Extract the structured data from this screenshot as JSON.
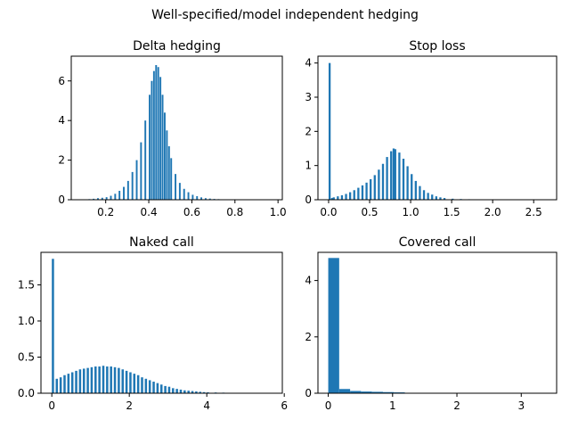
{
  "figure": {
    "title": "Well-specified/model independent hedging",
    "bar_color": "#1f77b4"
  },
  "chart_data": [
    {
      "type": "bar",
      "title": "Delta hedging",
      "xlabel": "",
      "ylabel": "",
      "xlim": [
        0.04,
        1.02
      ],
      "ylim": [
        0,
        7.25
      ],
      "xticks": [
        0.2,
        0.4,
        0.6,
        0.8,
        1.0
      ],
      "xtick_labels": [
        "0.2",
        "0.4",
        "0.6",
        "0.8",
        "1.0"
      ],
      "yticks": [
        0,
        2,
        4,
        6
      ],
      "ytick_labels": [
        "0",
        "2",
        "4",
        "6"
      ],
      "bin_width": 0.008,
      "bins": [
        [
          0.1,
          0.01
        ],
        [
          0.12,
          0.03
        ],
        [
          0.14,
          0.05
        ],
        [
          0.16,
          0.08
        ],
        [
          0.18,
          0.1
        ],
        [
          0.2,
          0.13
        ],
        [
          0.22,
          0.2
        ],
        [
          0.24,
          0.3
        ],
        [
          0.26,
          0.45
        ],
        [
          0.28,
          0.65
        ],
        [
          0.3,
          0.95
        ],
        [
          0.32,
          1.4
        ],
        [
          0.34,
          2.0
        ],
        [
          0.36,
          2.9
        ],
        [
          0.38,
          4.0
        ],
        [
          0.4,
          5.3
        ],
        [
          0.41,
          6.0
        ],
        [
          0.42,
          6.5
        ],
        [
          0.43,
          6.8
        ],
        [
          0.44,
          6.7
        ],
        [
          0.45,
          6.2
        ],
        [
          0.46,
          5.3
        ],
        [
          0.47,
          4.4
        ],
        [
          0.48,
          3.5
        ],
        [
          0.49,
          2.7
        ],
        [
          0.5,
          2.1
        ],
        [
          0.52,
          1.3
        ],
        [
          0.54,
          0.85
        ],
        [
          0.56,
          0.55
        ],
        [
          0.58,
          0.38
        ],
        [
          0.6,
          0.25
        ],
        [
          0.62,
          0.18
        ],
        [
          0.64,
          0.12
        ],
        [
          0.66,
          0.08
        ],
        [
          0.68,
          0.06
        ],
        [
          0.7,
          0.04
        ],
        [
          0.72,
          0.03
        ],
        [
          0.74,
          0.02
        ],
        [
          0.76,
          0.02
        ],
        [
          0.8,
          0.01
        ],
        [
          0.85,
          0.005
        ],
        [
          0.9,
          0.003
        ],
        [
          0.95,
          0.003
        ],
        [
          0.98,
          0.002
        ]
      ]
    },
    {
      "type": "bar",
      "title": "Stop loss",
      "xlabel": "",
      "ylabel": "",
      "xlim": [
        -0.13,
        2.78
      ],
      "ylim": [
        0,
        4.2
      ],
      "xticks": [
        0.0,
        0.5,
        1.0,
        1.5,
        2.0,
        2.5
      ],
      "xtick_labels": [
        "0.0",
        "0.5",
        "1.0",
        "1.5",
        "2.0",
        "2.5"
      ],
      "yticks": [
        0,
        1,
        2,
        3,
        4
      ],
      "ytick_labels": [
        "0",
        "1",
        "2",
        "3",
        "4"
      ],
      "bin_width": 0.025,
      "bins": [
        [
          0.0,
          4.0
        ],
        [
          0.03,
          0.05
        ],
        [
          0.05,
          0.07
        ],
        [
          0.1,
          0.1
        ],
        [
          0.15,
          0.13
        ],
        [
          0.2,
          0.17
        ],
        [
          0.25,
          0.22
        ],
        [
          0.3,
          0.28
        ],
        [
          0.35,
          0.35
        ],
        [
          0.4,
          0.42
        ],
        [
          0.45,
          0.5
        ],
        [
          0.5,
          0.6
        ],
        [
          0.55,
          0.72
        ],
        [
          0.6,
          0.88
        ],
        [
          0.65,
          1.05
        ],
        [
          0.7,
          1.25
        ],
        [
          0.75,
          1.42
        ],
        [
          0.78,
          1.5
        ],
        [
          0.8,
          1.48
        ],
        [
          0.85,
          1.38
        ],
        [
          0.9,
          1.2
        ],
        [
          0.95,
          0.98
        ],
        [
          1.0,
          0.75
        ],
        [
          1.05,
          0.55
        ],
        [
          1.1,
          0.4
        ],
        [
          1.15,
          0.28
        ],
        [
          1.2,
          0.2
        ],
        [
          1.25,
          0.15
        ],
        [
          1.3,
          0.1
        ],
        [
          1.35,
          0.07
        ],
        [
          1.4,
          0.05
        ],
        [
          1.5,
          0.03
        ],
        [
          1.6,
          0.02
        ],
        [
          1.7,
          0.015
        ],
        [
          1.8,
          0.01
        ],
        [
          1.9,
          0.005
        ],
        [
          2.1,
          0.003
        ],
        [
          2.3,
          0.002
        ],
        [
          2.6,
          0.001
        ]
      ]
    },
    {
      "type": "bar",
      "title": "Naked call",
      "xlabel": "",
      "ylabel": "",
      "xlim": [
        -0.28,
        5.95
      ],
      "ylim": [
        0,
        1.95
      ],
      "xticks": [
        0,
        2,
        4,
        6
      ],
      "xtick_labels": [
        "0",
        "2",
        "4",
        "6"
      ],
      "yticks": [
        0.0,
        0.5,
        1.0,
        1.5
      ],
      "ytick_labels": [
        "0.0",
        "0.5",
        "1.0",
        "1.5"
      ],
      "bin_width": 0.058,
      "bins": [
        [
          0.0,
          1.86
        ],
        [
          0.1,
          0.2
        ],
        [
          0.2,
          0.22
        ],
        [
          0.3,
          0.25
        ],
        [
          0.4,
          0.27
        ],
        [
          0.5,
          0.29
        ],
        [
          0.6,
          0.31
        ],
        [
          0.7,
          0.33
        ],
        [
          0.8,
          0.34
        ],
        [
          0.9,
          0.35
        ],
        [
          1.0,
          0.36
        ],
        [
          1.1,
          0.37
        ],
        [
          1.2,
          0.37
        ],
        [
          1.3,
          0.38
        ],
        [
          1.4,
          0.37
        ],
        [
          1.5,
          0.37
        ],
        [
          1.6,
          0.36
        ],
        [
          1.7,
          0.35
        ],
        [
          1.8,
          0.33
        ],
        [
          1.9,
          0.31
        ],
        [
          2.0,
          0.29
        ],
        [
          2.1,
          0.27
        ],
        [
          2.2,
          0.25
        ],
        [
          2.3,
          0.22
        ],
        [
          2.4,
          0.2
        ],
        [
          2.5,
          0.18
        ],
        [
          2.6,
          0.16
        ],
        [
          2.7,
          0.14
        ],
        [
          2.8,
          0.12
        ],
        [
          2.9,
          0.1
        ],
        [
          3.0,
          0.09
        ],
        [
          3.1,
          0.07
        ],
        [
          3.2,
          0.06
        ],
        [
          3.3,
          0.05
        ],
        [
          3.4,
          0.04
        ],
        [
          3.5,
          0.035
        ],
        [
          3.6,
          0.03
        ],
        [
          3.7,
          0.025
        ],
        [
          3.8,
          0.02
        ],
        [
          3.9,
          0.015
        ],
        [
          4.0,
          0.012
        ],
        [
          4.2,
          0.01
        ],
        [
          4.4,
          0.008
        ],
        [
          4.7,
          0.004
        ],
        [
          5.0,
          0.002
        ],
        [
          5.7,
          0.001
        ]
      ]
    },
    {
      "type": "bar",
      "title": "Covered call",
      "xlabel": "",
      "ylabel": "",
      "xlim": [
        -0.16,
        3.55
      ],
      "ylim": [
        0,
        5.0
      ],
      "xticks": [
        0,
        1,
        2,
        3
      ],
      "xtick_labels": [
        "0",
        "1",
        "2",
        "3"
      ],
      "yticks": [
        0,
        2,
        4
      ],
      "ytick_labels": [
        "0",
        "2",
        "4"
      ],
      "bin_width": 0.17,
      "bins": [
        [
          0.0,
          4.8
        ],
        [
          0.17,
          0.15
        ],
        [
          0.34,
          0.08
        ],
        [
          0.51,
          0.06
        ],
        [
          0.68,
          0.05
        ],
        [
          0.85,
          0.04
        ],
        [
          1.02,
          0.03
        ],
        [
          1.19,
          0.015
        ],
        [
          1.36,
          0.01
        ],
        [
          1.53,
          0.008
        ],
        [
          1.7,
          0.005
        ],
        [
          1.87,
          0.004
        ],
        [
          2.04,
          0.003
        ],
        [
          2.4,
          0.002
        ],
        [
          2.8,
          0.001
        ],
        [
          3.3,
          0.001
        ]
      ]
    }
  ]
}
